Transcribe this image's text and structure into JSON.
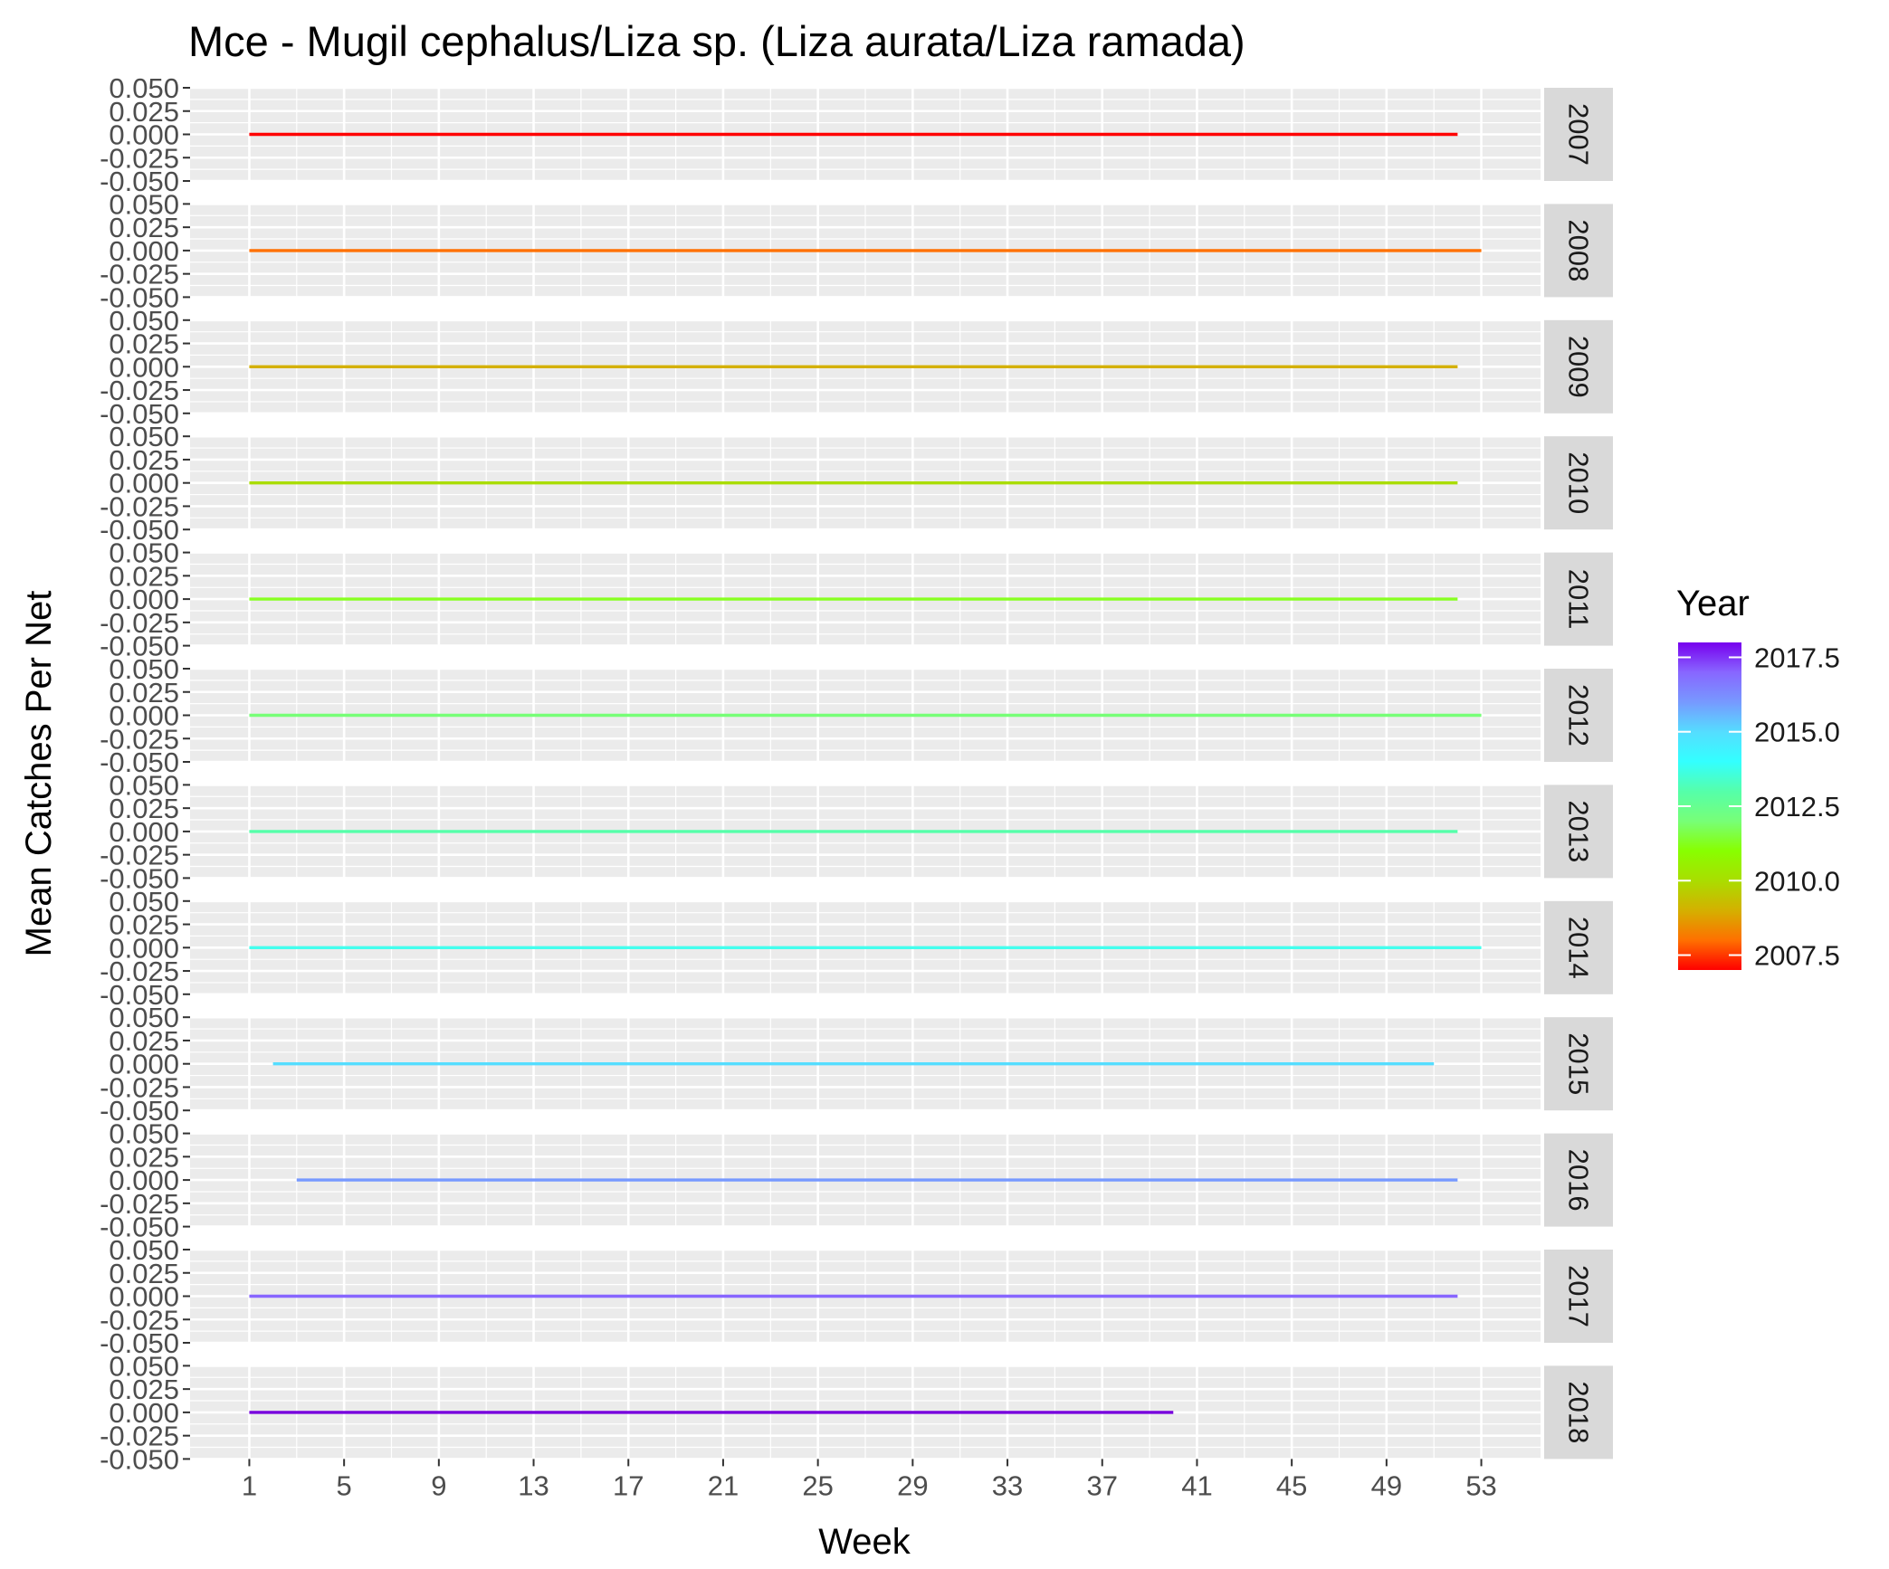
{
  "chart_data": {
    "type": "line",
    "title": "Mce - Mugil cephalus/Liza sp. (Liza aurata/Liza ramada)",
    "xlabel": "Week",
    "ylabel": "Mean Catches Per Net",
    "x_ticks": [
      1,
      5,
      9,
      13,
      17,
      21,
      25,
      29,
      33,
      37,
      41,
      45,
      49,
      53
    ],
    "xlim": [
      -1.5,
      55.5
    ],
    "y_ticks": [
      -0.05,
      -0.025,
      0,
      0.025,
      0.05
    ],
    "y_tick_labels": [
      "-0.050",
      "-0.025",
      "0.000",
      "0.025",
      "0.050"
    ],
    "ylim": [
      -0.05,
      0.05
    ],
    "grid": true,
    "facet_by": "Year",
    "series": [
      {
        "name": "2007",
        "color": "#ff0000",
        "x_range": [
          1,
          52
        ],
        "y": 0
      },
      {
        "name": "2008",
        "color": "#ff7000",
        "x_range": [
          1,
          53
        ],
        "y": 0
      },
      {
        "name": "2009",
        "color": "#d4b000",
        "x_range": [
          1,
          52
        ],
        "y": 0
      },
      {
        "name": "2010",
        "color": "#aadd00",
        "x_range": [
          1,
          52
        ],
        "y": 0
      },
      {
        "name": "2011",
        "color": "#88ff22",
        "x_range": [
          1,
          52
        ],
        "y": 0
      },
      {
        "name": "2012",
        "color": "#77ff77",
        "x_range": [
          1,
          53
        ],
        "y": 0
      },
      {
        "name": "2013",
        "color": "#55ffaa",
        "x_range": [
          1,
          52
        ],
        "y": 0
      },
      {
        "name": "2014",
        "color": "#44ffee",
        "x_range": [
          1,
          53
        ],
        "y": 0
      },
      {
        "name": "2015",
        "color": "#55ddff",
        "x_range": [
          2,
          51
        ],
        "y": 0
      },
      {
        "name": "2016",
        "color": "#7799ff",
        "x_range": [
          3,
          52
        ],
        "y": 0
      },
      {
        "name": "2017",
        "color": "#8866ff",
        "x_range": [
          1,
          52
        ],
        "y": 0
      },
      {
        "name": "2018",
        "color": "#7700dd",
        "x_range": [
          1,
          40
        ],
        "y": 0
      }
    ],
    "legend": {
      "title": "Year",
      "position": "right",
      "type": "colorbar",
      "ticks": [
        2007.5,
        2010,
        2012.5,
        2015,
        2017.5
      ],
      "tick_labels": [
        "2007.5",
        "2010.0",
        "2012.5",
        "2015.0",
        "2017.5"
      ],
      "range": [
        2007,
        2018
      ],
      "gradient": [
        "#ff0000",
        "#ff7000",
        "#d4b000",
        "#aadd00",
        "#88ff00",
        "#77ff77",
        "#55ffaa",
        "#33ffff",
        "#55ddff",
        "#7799ff",
        "#8866ff",
        "#7700ee"
      ]
    }
  }
}
